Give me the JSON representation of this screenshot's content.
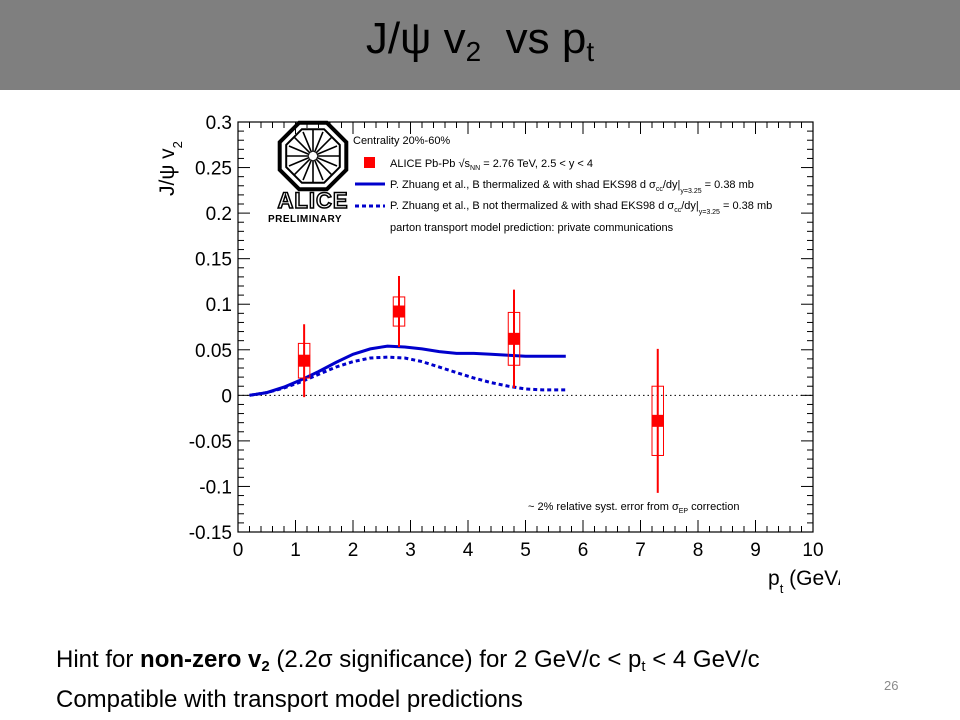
{
  "slide": {
    "title": {
      "prefix": "J/",
      "psi": "ψ",
      "v": " v",
      "two": "2",
      "vs": "  vs p",
      "t": "t"
    },
    "footer": {
      "l1_a": "Hint for ",
      "l1_b": "non-zero v",
      "l1_sub": "2",
      "l1_c": " (2.2",
      "l1_sigma": "σ",
      "l1_d": " significance) for 2 GeV/c < p",
      "l1_sub2": "t",
      "l1_e": " < 4 GeV/c",
      "l2": "Compatible with transport model predictions"
    },
    "page_number": "26"
  },
  "chart_data": {
    "type": "scatter",
    "title": "",
    "xlabel": "p_t (GeV/c)",
    "ylabel": "J/ψ v_2",
    "xlim": [
      0,
      10
    ],
    "ylim": [
      -0.15,
      0.3
    ],
    "x_ticks": [
      "0",
      "1",
      "2",
      "3",
      "4",
      "5",
      "6",
      "7",
      "8",
      "9",
      "10"
    ],
    "y_ticks": [
      "-0.15",
      "-0.1",
      "-0.05",
      "0",
      "0.05",
      "0.1",
      "0.15",
      "0.2",
      "0.25",
      "0.3"
    ],
    "legend_position": "top-left",
    "logo": {
      "name": "ALICE",
      "sub": "PRELIMINARY"
    },
    "legend_header": "Centrality 20%-60%",
    "legend_footer": "parton transport model prediction: private communications",
    "annotation": "~ 2% relative syst. error from σ_EP correction",
    "series": [
      {
        "name": "ALICE Pb-Pb √s_NN = 2.76 TeV, 2.5 < y < 4",
        "kind": "points",
        "color": "#ff0000",
        "x": [
          1.15,
          2.8,
          4.8,
          7.3
        ],
        "y": [
          0.038,
          0.092,
          0.062,
          -0.028
        ],
        "stat_err": [
          0.04,
          0.039,
          0.054,
          0.079
        ],
        "syst_err": [
          0.019,
          0.016,
          0.029,
          0.038
        ],
        "box_halfwidth": 0.1
      },
      {
        "name": "P. Zhuang et al., B thermalized & with shad EKS98 dσ_cc/dy|_y=3.25 = 0.38 mb",
        "kind": "line",
        "style": "solid",
        "color": "#0000cc",
        "x": [
          0.2,
          0.5,
          0.8,
          1.1,
          1.4,
          1.7,
          2.0,
          2.3,
          2.6,
          2.9,
          3.2,
          3.5,
          3.8,
          4.1,
          4.4,
          4.7,
          5.0,
          5.3,
          5.7
        ],
        "y": [
          0.0,
          0.003,
          0.009,
          0.017,
          0.026,
          0.036,
          0.045,
          0.051,
          0.054,
          0.053,
          0.051,
          0.048,
          0.046,
          0.046,
          0.045,
          0.044,
          0.043,
          0.043,
          0.043
        ]
      },
      {
        "name": "P. Zhuang et al., B not thermalized & with shad EKS98 dσ_cc/dy|_y=3.25 = 0.38 mb",
        "kind": "line",
        "style": "dashed",
        "color": "#0000cc",
        "x": [
          0.2,
          0.5,
          0.8,
          1.1,
          1.4,
          1.7,
          2.0,
          2.3,
          2.6,
          2.9,
          3.2,
          3.5,
          3.8,
          4.1,
          4.4,
          4.7,
          5.0,
          5.3,
          5.7
        ],
        "y": [
          0.0,
          0.003,
          0.008,
          0.015,
          0.023,
          0.031,
          0.037,
          0.041,
          0.042,
          0.041,
          0.037,
          0.031,
          0.025,
          0.019,
          0.014,
          0.01,
          0.007,
          0.006,
          0.006
        ]
      }
    ]
  }
}
